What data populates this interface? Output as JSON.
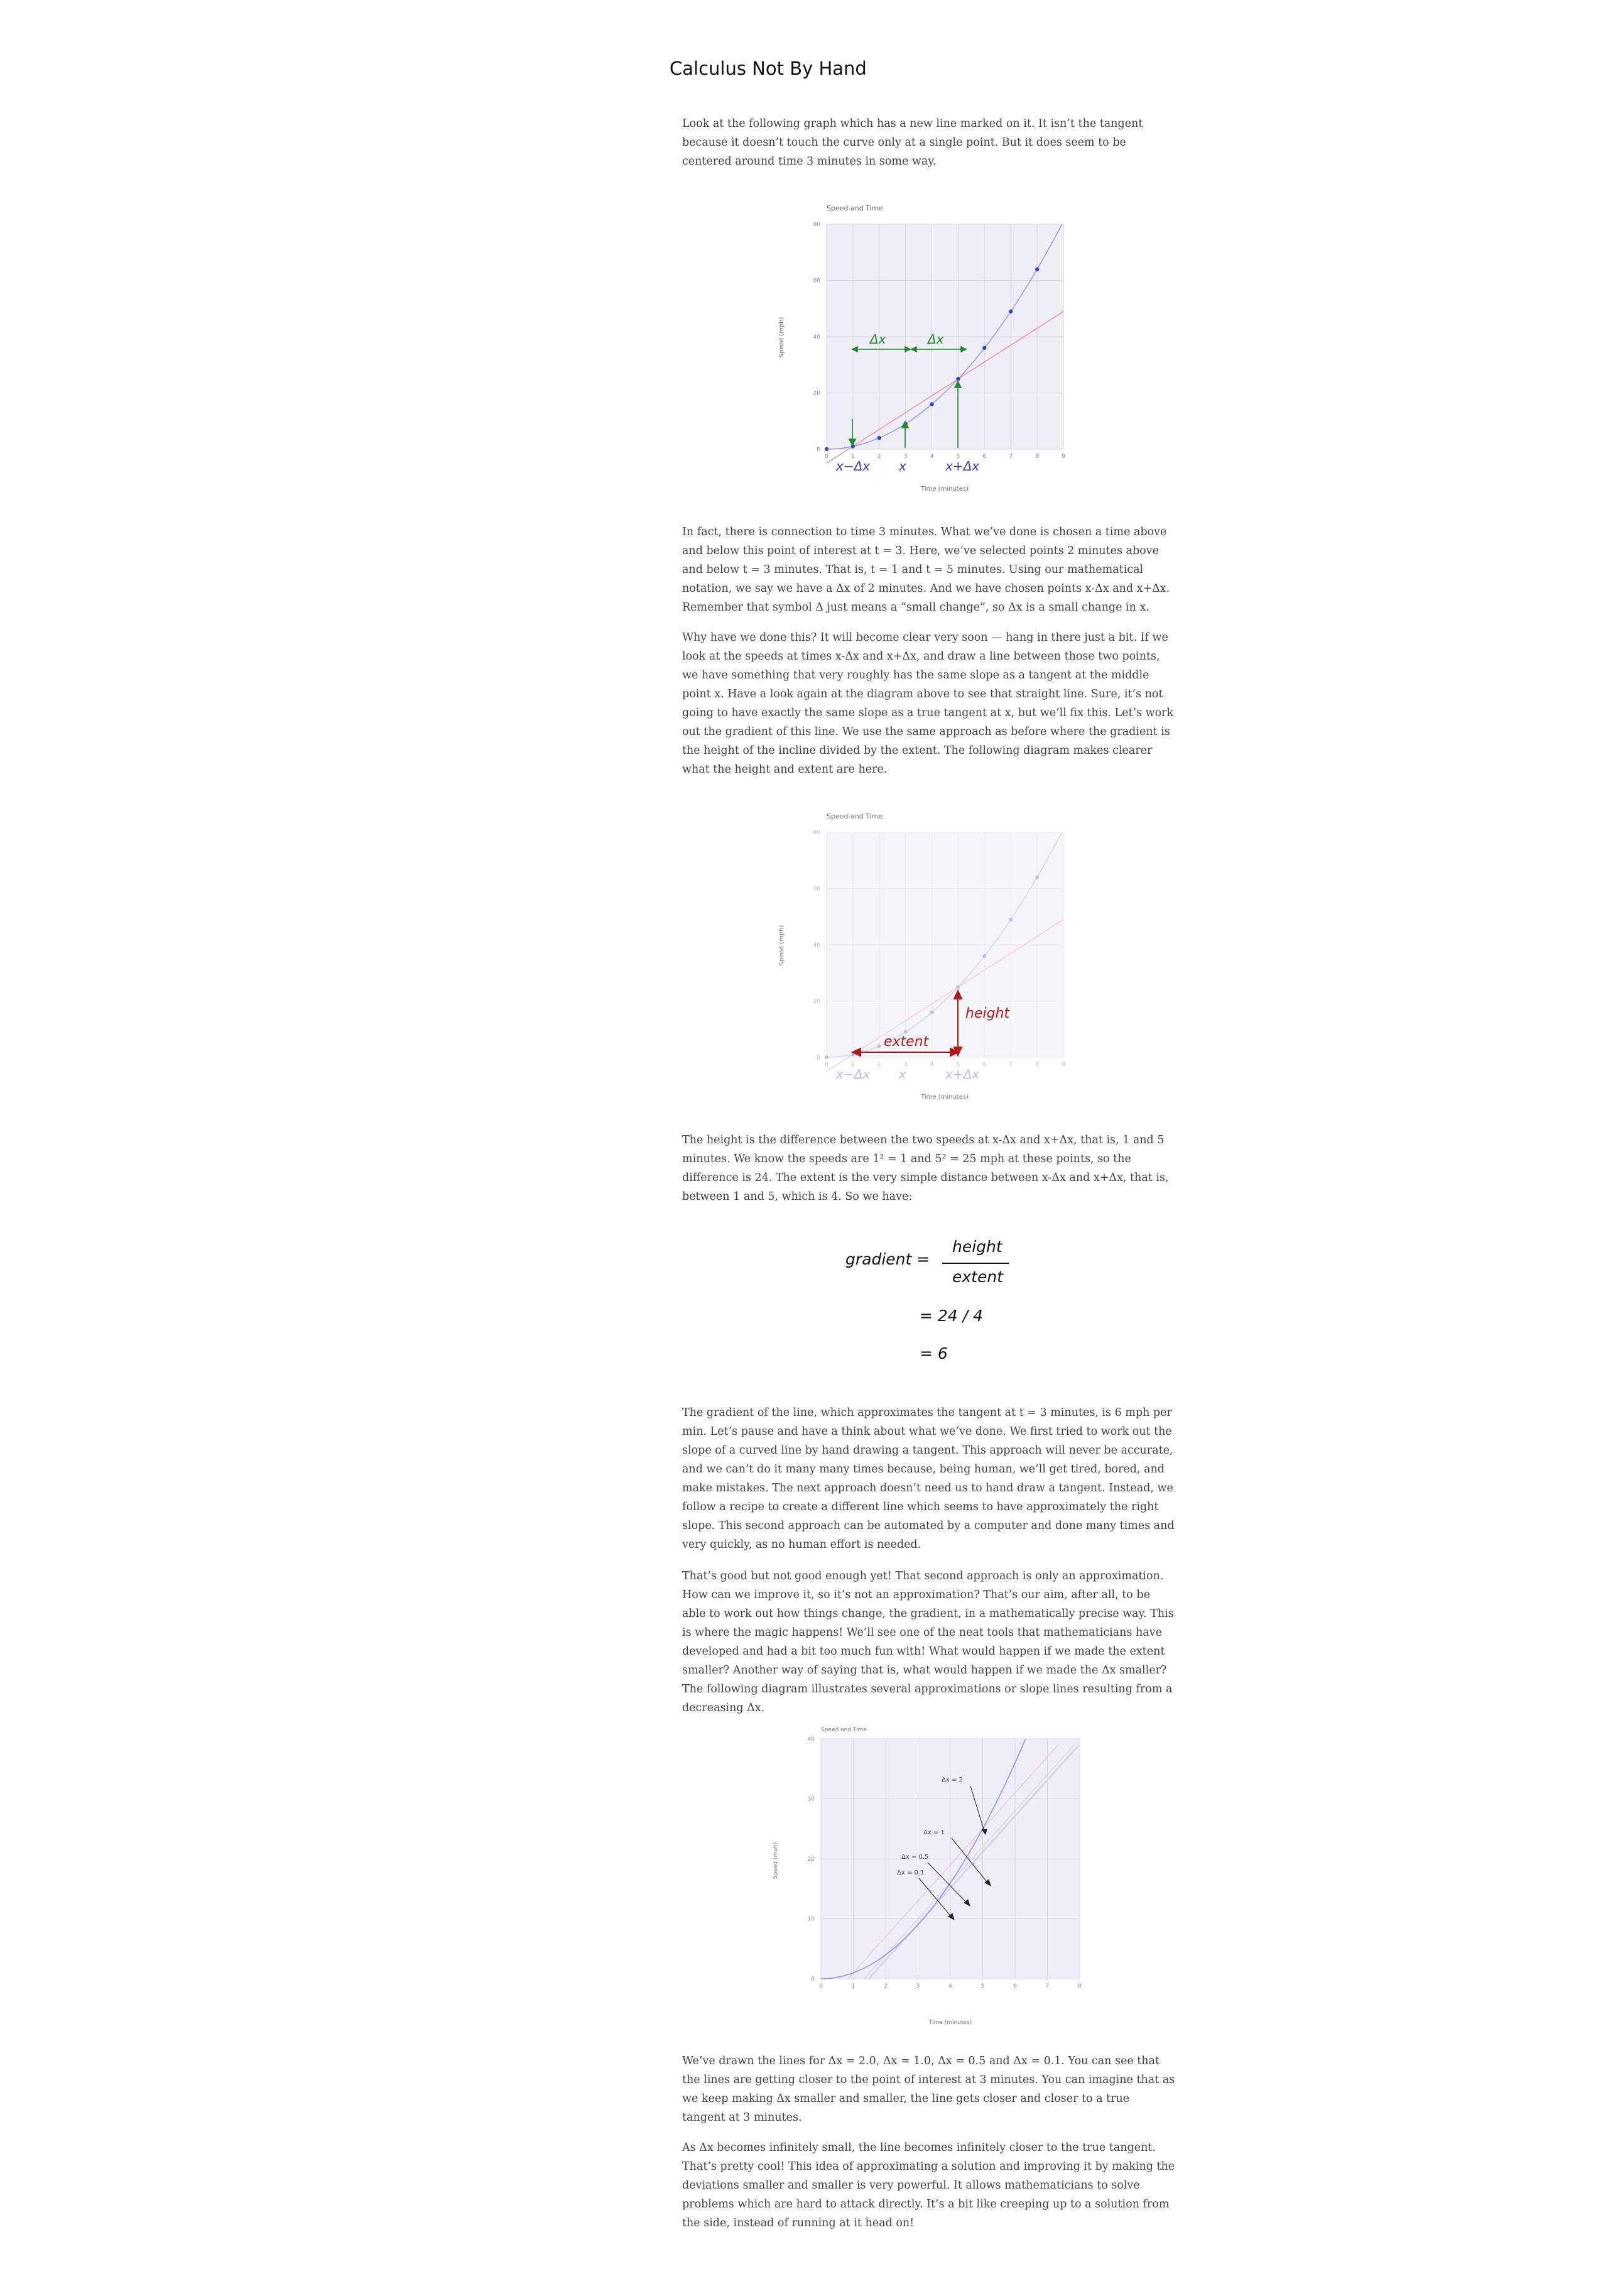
{
  "title": "Calculus Not By Hand",
  "paragraphs": [
    "Look at the following graph which has a new line marked on it. It isn’t the tangent because it doesn’t touch the curve only at a single point. But it does seem to be centered around time 3 minutes in some way.",
    "In fact, there is connection to time 3 minutes. What we’ve done is chosen a time above and below this point of interest at t = 3. Here, we’ve selected points 2 minutes above and below t = 3 minutes. That is, t = 1 and t = 5 minutes. Using our mathematical notation, we say we have a Δx of 2 minutes. And we have chosen points x-Δx and x+Δx. Remember that symbol Δ just means a “small change”, so Δx is a small change in x.",
    "Why have we done this? It will become clear very soon — hang in there just a bit. If we look at the speeds at times x-Δx and x+Δx, and draw a line between those two points, we have something that very roughly has the same slope as a tangent at the middle point x. Have a look again at the diagram above to see that straight line. Sure, it’s not going to have exactly the same slope as a true tangent at x, but we’ll fix this. Let’s work out the gradient of this line. We use the same approach as before where the gradient is the height of the incline divided by the extent. The following diagram makes clearer what the height and extent are here.",
    "The height is the difference between the two speeds at x-Δx and x+Δx, that is, 1 and 5 minutes. We know the speeds are 1² = 1 and 5² = 25 mph at these points, so the difference is 24. The extent is the very simple distance between x-Δx and x+Δx, that is, between 1 and 5, which is 4. So we have:",
    "The gradient of the line, which approximates the tangent at t = 3 minutes, is 6 mph per min. Let’s pause and have a think about what we’ve done. We first tried to work out the slope of a curved line by hand drawing a tangent. This approach will never be accurate, and we can’t do it many many times because, being human, we’ll get tired, bored, and make mistakes. The next approach doesn’t need us to hand draw a tangent. Instead, we follow a recipe to create a different line which seems to have approximately the right slope. This second approach can be automated by a computer and done many times and very quickly, as no human effort is needed.",
    "That’s good but not good enough yet! That second approach is only an approximation. How can we improve it, so it’s not an approximation? That’s our aim, after all, to be able to work out how things change, the gradient, in a mathematically precise way. This is where the magic happens! We’ll see one of the neat tools that mathematicians have developed and had a bit too much fun with! What would happen if we made the extent smaller? Another way of saying that is, what would happen if we made the Δx smaller? The following diagram illustrates several approximations or slope lines resulting from a decreasing Δx.",
    "We’ve drawn the lines for Δx = 2.0, Δx = 1.0, Δx = 0.5 and Δx = 0.1. You can see that the lines are getting closer to the point of interest at 3 minutes. You can imagine that as we keep making Δx smaller and smaller, the line gets closer and closer to a true tangent at 3 minutes.",
    "As Δx becomes infinitely small, the line becomes infinitely closer to the true tangent. That’s pretty cool! This idea of approximating a solution and improving it by making the deviations smaller and smaller is very powerful. It allows mathematicians to solve problems which are hard to attack directly. It’s a bit like creeping up to a solution from the side, instead of running at it head on!"
  ],
  "chart_data": [
    {
      "type": "scatter",
      "title": "Speed and Time",
      "xlabel": "Time (minutes)",
      "ylabel": "Speed (mph)",
      "xlim": [
        0,
        9
      ],
      "ylim": [
        0,
        80
      ],
      "x_ticks": [
        "0",
        "1",
        "2",
        "3",
        "4",
        "5",
        "6",
        "7",
        "8",
        "9"
      ],
      "y_ticks": [
        "0",
        "20",
        "40",
        "60",
        "80"
      ],
      "series": [
        {
          "x": [
            0,
            1,
            2,
            3,
            4,
            5,
            6,
            7,
            8
          ],
          "y": [
            0,
            1,
            4,
            9,
            16,
            25,
            36,
            49,
            64
          ]
        }
      ],
      "line": {
        "x1": 1,
        "y1": 1,
        "x2": 5,
        "y2": 25
      },
      "annotations": [
        "Δx",
        "Δx",
        "x−Δx",
        "x",
        "x+Δx"
      ]
    },
    {
      "type": "scatter",
      "title": "Speed and Time",
      "xlabel": "Time (minutes)",
      "ylabel": "Speed (mph)",
      "xlim": [
        0,
        9
      ],
      "ylim": [
        0,
        80
      ],
      "x_ticks": [
        "0",
        "1",
        "2",
        "3",
        "4",
        "5",
        "6",
        "7",
        "8",
        "9"
      ],
      "y_ticks": [
        "0",
        "20",
        "40",
        "60",
        "80"
      ],
      "series": [
        {
          "x": [
            0,
            1,
            2,
            3,
            4,
            5,
            6,
            7,
            8
          ],
          "y": [
            0,
            1,
            4,
            9,
            16,
            25,
            36,
            49,
            64
          ]
        }
      ],
      "line": {
        "x1": 1,
        "y1": 1,
        "x2": 5,
        "y2": 25
      },
      "annotations": [
        "height",
        "extent",
        "x−Δx",
        "x",
        "x+Δx"
      ]
    },
    {
      "type": "line",
      "title": "Speed and Time",
      "xlabel": "Time (minutes)",
      "ylabel": "Speed (mph)",
      "xlim": [
        0,
        8
      ],
      "ylim": [
        0,
        40
      ],
      "x_ticks": [
        "0",
        "1",
        "2",
        "3",
        "4",
        "5",
        "6",
        "7",
        "8"
      ],
      "y_ticks": [
        "0",
        "10",
        "20",
        "30",
        "40"
      ],
      "curve": "y = x^2",
      "dx_values": [
        2.0,
        1.0,
        0.5,
        0.1
      ],
      "annotations": [
        "Δx = 2",
        "Δx = 1",
        "Δx = 0.5",
        "Δx = 0.1"
      ]
    }
  ],
  "equation": {
    "lhs": "gradient =",
    "numerator": "height",
    "denominator": "extent",
    "step1": "= 24 / 4",
    "step2": "= 6"
  },
  "colors": {
    "curve": "#8c96e6",
    "points": "#3346c8",
    "secant": "#f08c9a",
    "green": "#1e8a2e",
    "red": "#b01a1a",
    "plot_bg": "#efedf5",
    "label_blue": "#3b44a8"
  }
}
